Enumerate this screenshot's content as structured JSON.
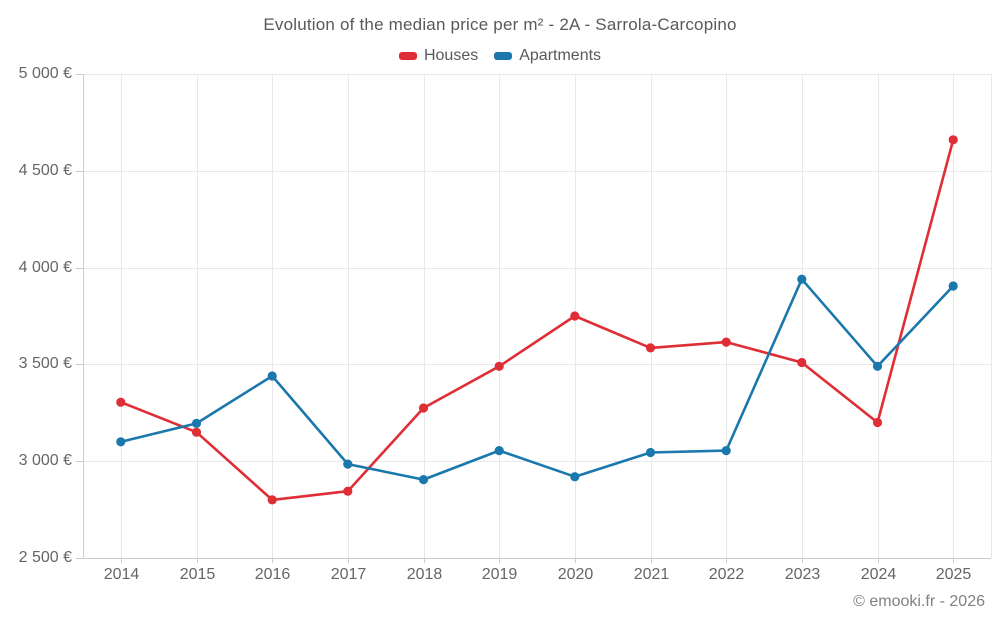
{
  "title": "Evolution of the median price per m² - 2A - Sarrola-Carcopino",
  "footer": "© emooki.fr - 2026",
  "colors": {
    "houses": "#df2e35",
    "apartments": "#1a78ad",
    "grid": "#e9e9e9",
    "axis": "#cccccc",
    "title_text": "#565a5c",
    "axis_text": "#666666"
  },
  "chart_data": {
    "type": "line",
    "title": "Evolution of the median price per m² - 2A - Sarrola-Carcopino",
    "categories": [
      "2014",
      "2015",
      "2016",
      "2017",
      "2018",
      "2019",
      "2020",
      "2021",
      "2022",
      "2023",
      "2024",
      "2025"
    ],
    "series": [
      {
        "name": "Houses",
        "color": "#df2e35",
        "values": [
          3305,
          3150,
          2800,
          2845,
          3275,
          3490,
          3750,
          3585,
          3615,
          3510,
          3200,
          4660
        ]
      },
      {
        "name": "Apartments",
        "color": "#1a78ad",
        "values": [
          3100,
          3195,
          3440,
          2985,
          2905,
          3055,
          2920,
          3045,
          3055,
          3940,
          3490,
          3905
        ]
      }
    ],
    "xlabel": "",
    "ylabel": "",
    "ylim": [
      2500,
      5000
    ],
    "ytick_step": 500,
    "ytick_labels": [
      "2 500 €",
      "3 000 €",
      "3 500 €",
      "4 000 €",
      "4 500 €",
      "5 000 €"
    ],
    "grid": true,
    "legend_position": "top"
  }
}
